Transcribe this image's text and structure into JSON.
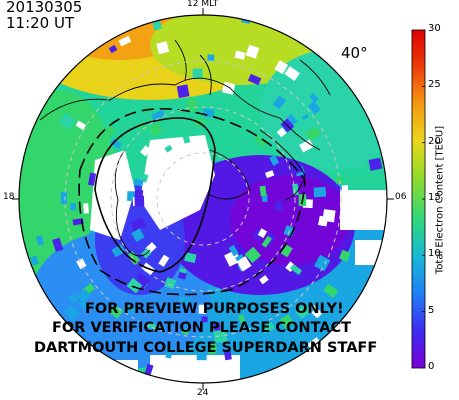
{
  "header": {
    "date": "20130305",
    "time": "11:20 UT"
  },
  "map": {
    "min_latitude_label": "40°",
    "mlt_labels": {
      "top": "12 MLT",
      "left": "18",
      "right": "06",
      "bottom": "24"
    }
  },
  "colorbar": {
    "title": "Total Electron Content [TECU]",
    "ticks": [
      "0",
      "5",
      "10",
      "15",
      "20",
      "25",
      "30"
    ],
    "range": [
      0,
      30
    ],
    "colormap": [
      "#7c00d8",
      "#3d2cf0",
      "#1f7ff5",
      "#16b9d6",
      "#2fd87a",
      "#8fdb2b",
      "#e9d81b",
      "#f59a12",
      "#ee3e0a",
      "#dd0000"
    ]
  },
  "watermark": {
    "lines": [
      "FOR PREVIEW PURPOSES ONLY!",
      "FOR VERIFICATION PLEASE CONTACT",
      "DARTMOUTH COLLEGE SUPERDARN STAFF"
    ]
  }
}
